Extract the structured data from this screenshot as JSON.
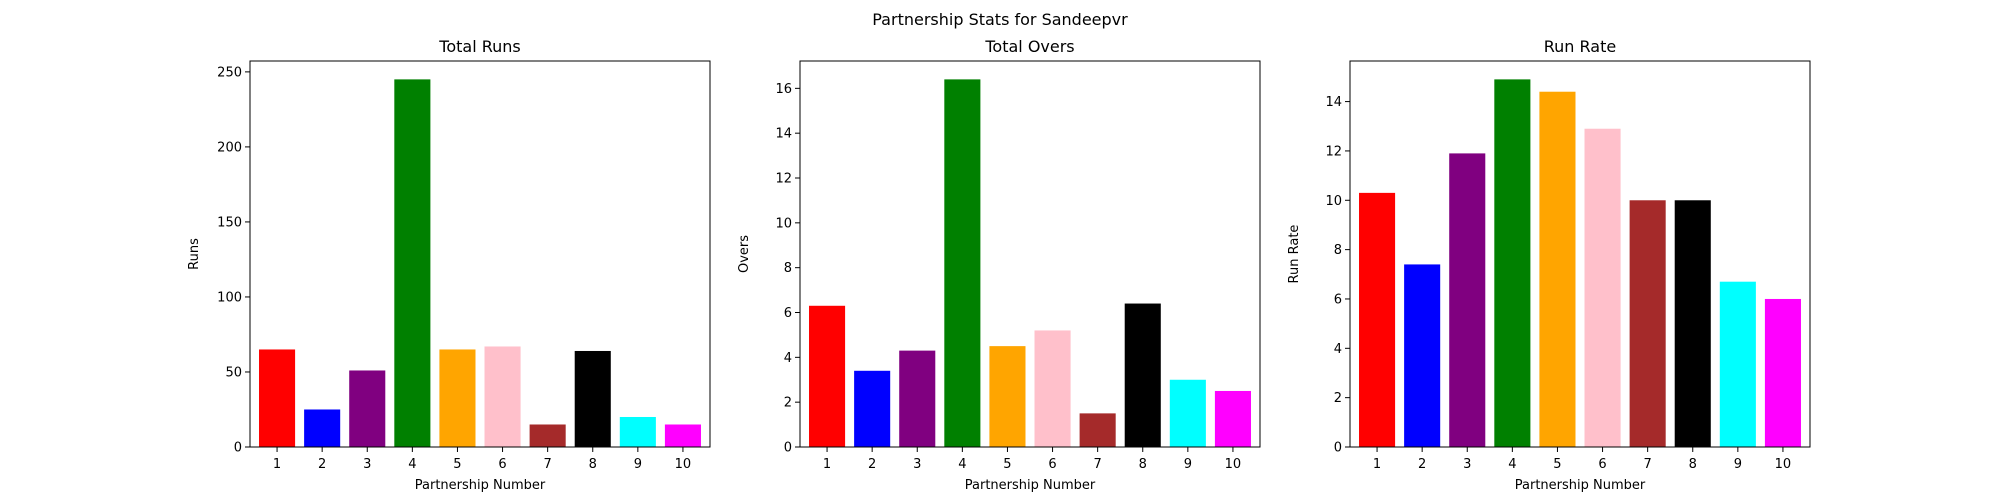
{
  "figure": {
    "suptitle": "Partnership Stats for Sandeepvr"
  },
  "chart_data": [
    {
      "type": "bar",
      "title": "Total Runs",
      "xlabel": "Partnership Number",
      "ylabel": "Runs",
      "categories": [
        "1",
        "2",
        "3",
        "4",
        "5",
        "6",
        "7",
        "8",
        "9",
        "10"
      ],
      "values": [
        65,
        25,
        51,
        245,
        65,
        67,
        15,
        64,
        20,
        15
      ],
      "colors": [
        "#ff0000",
        "#0000ff",
        "#800080",
        "#008000",
        "#ffa500",
        "#ffc0cb",
        "#a52a2a",
        "#000000",
        "#00ffff",
        "#ff00ff"
      ],
      "ylim": [
        0,
        257.25
      ],
      "yticks": [
        0,
        50,
        100,
        150,
        200,
        250
      ],
      "grid": false
    },
    {
      "type": "bar",
      "title": "Total Overs",
      "xlabel": "Partnership Number",
      "ylabel": "Overs",
      "categories": [
        "1",
        "2",
        "3",
        "4",
        "5",
        "6",
        "7",
        "8",
        "9",
        "10"
      ],
      "values": [
        6.3,
        3.4,
        4.3,
        16.4,
        4.5,
        5.2,
        1.5,
        6.4,
        3.0,
        2.5
      ],
      "colors": [
        "#ff0000",
        "#0000ff",
        "#800080",
        "#008000",
        "#ffa500",
        "#ffc0cb",
        "#a52a2a",
        "#000000",
        "#00ffff",
        "#ff00ff"
      ],
      "ylim": [
        0,
        17.22
      ],
      "yticks": [
        0,
        2,
        4,
        6,
        8,
        10,
        12,
        14,
        16
      ],
      "grid": false
    },
    {
      "type": "bar",
      "title": "Run Rate",
      "xlabel": "Partnership Number",
      "ylabel": "Run Rate",
      "categories": [
        "1",
        "2",
        "3",
        "4",
        "5",
        "6",
        "7",
        "8",
        "9",
        "10"
      ],
      "values": [
        10.3,
        7.4,
        11.9,
        14.9,
        14.4,
        12.9,
        10.0,
        10.0,
        6.7,
        6.0
      ],
      "colors": [
        "#ff0000",
        "#0000ff",
        "#800080",
        "#008000",
        "#ffa500",
        "#ffc0cb",
        "#a52a2a",
        "#000000",
        "#00ffff",
        "#ff00ff"
      ],
      "ylim": [
        0,
        15.645
      ],
      "yticks": [
        0,
        2,
        4,
        6,
        8,
        10,
        12,
        14
      ],
      "grid": false
    }
  ]
}
